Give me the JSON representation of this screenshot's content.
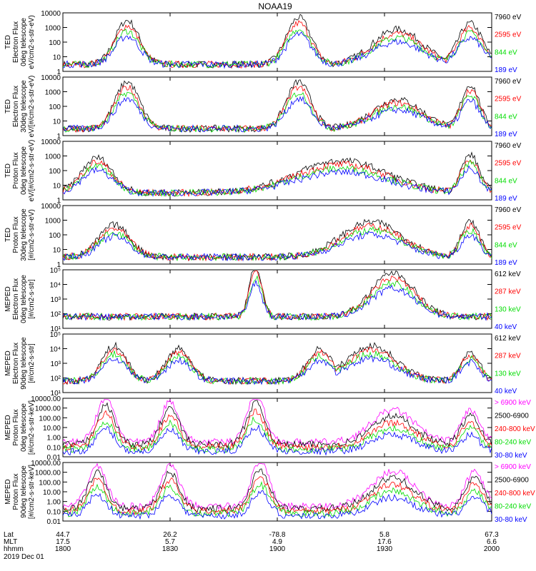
{
  "title": "NOAA19",
  "chart_data": {
    "type": "line",
    "title": "NOAA19",
    "time_axis": {
      "rows": [
        {
          "label": "Lat",
          "values": [
            "44.7",
            "26.2",
            "-78.8",
            "5.8",
            "67.3"
          ]
        },
        {
          "label": "MLT",
          "values": [
            "17.5",
            "5.7",
            "4.9",
            "17.6",
            "6.6"
          ]
        },
        {
          "label": "hhmm",
          "values": [
            "1800",
            "1830",
            "1900",
            "1930",
            "2000"
          ]
        }
      ],
      "date": "2019 Dec 01"
    },
    "panels": [
      {
        "ylabel": [
          "TED",
          "Electron Flux",
          "0deg telescope",
          "eV/cm2-s-str-eV)"
        ],
        "ylim": [
          1,
          10000
        ],
        "scale": "log",
        "yticks": [
          "1",
          "10",
          "100",
          "1000",
          "10000"
        ],
        "legend": [
          {
            "name": "7960 eV",
            "color": "#000000"
          },
          {
            "name": "2595 eV",
            "color": "#ff0000"
          },
          {
            "name": "844 eV",
            "color": "#00dd00"
          },
          {
            "name": "189 eV",
            "color": "#0000ff"
          }
        ]
      },
      {
        "ylabel": [
          "TED",
          "Electron Flux",
          "30deg telescope",
          "eV/[#/cm2-s-str-eV)"
        ],
        "ylim": [
          1,
          10000
        ],
        "scale": "log",
        "yticks": [
          "1",
          "10",
          "100",
          "1000",
          "10000"
        ],
        "legend": [
          {
            "name": "7960 eV",
            "color": "#000000"
          },
          {
            "name": "2595 eV",
            "color": "#ff0000"
          },
          {
            "name": "844 eV",
            "color": "#00dd00"
          },
          {
            "name": "189 eV",
            "color": "#0000ff"
          }
        ]
      },
      {
        "ylabel": [
          "TED",
          "Proton Flux",
          "0deg telescope",
          "eV/[#/cm2-s-str-eV)"
        ],
        "ylim": [
          1,
          10000
        ],
        "scale": "log",
        "yticks": [
          "1",
          "10",
          "100",
          "1000",
          "10000"
        ],
        "legend": [
          {
            "name": "7960 eV",
            "color": "#000000"
          },
          {
            "name": "2595 eV",
            "color": "#ff0000"
          },
          {
            "name": "844 eV",
            "color": "#00dd00"
          },
          {
            "name": "189 eV",
            "color": "#0000ff"
          }
        ]
      },
      {
        "ylabel": [
          "TED",
          "Proton Flux",
          "30deg telescope",
          "[#/cm2-s-str-eV)"
        ],
        "ylim": [
          1,
          10000
        ],
        "scale": "log",
        "yticks": [
          "1",
          "10",
          "100",
          "1000",
          "10000"
        ],
        "legend": [
          {
            "name": "7960 eV",
            "color": "#000000"
          },
          {
            "name": "2595 eV",
            "color": "#ff0000"
          },
          {
            "name": "844 eV",
            "color": "#00dd00"
          },
          {
            "name": "189 eV",
            "color": "#0000ff"
          }
        ]
      },
      {
        "ylabel": [
          "MEPED",
          "Electron Flux",
          "0deg telescope",
          "[#/cm2-s-str]"
        ],
        "ylim": [
          10,
          100000
        ],
        "scale": "log",
        "yticks": [
          "10¹",
          "10²",
          "10³",
          "10⁴",
          "10⁵"
        ],
        "legend": [
          {
            "name": "612 keV",
            "color": "#000000"
          },
          {
            "name": "287 keV",
            "color": "#ff0000"
          },
          {
            "name": "130 keV",
            "color": "#00dd00"
          },
          {
            "name": "40 keV",
            "color": "#0000ff"
          }
        ]
      },
      {
        "ylabel": [
          "MEPED",
          "Electron Flux",
          "90deg telescope",
          "[#/cm2-s-str]"
        ],
        "ylim": [
          10,
          100000
        ],
        "scale": "log",
        "yticks": [
          "10¹",
          "10²",
          "10³",
          "10⁴",
          "10⁵"
        ],
        "legend": [
          {
            "name": "612 keV",
            "color": "#000000"
          },
          {
            "name": "287 keV",
            "color": "#ff0000"
          },
          {
            "name": "130 keV",
            "color": "#00dd00"
          },
          {
            "name": "40 keV",
            "color": "#0000ff"
          }
        ]
      },
      {
        "ylabel": [
          "MEPED",
          "Proton Flux",
          "0deg telescope",
          "[#/cm2-s-str-keV]"
        ],
        "ylim": [
          0.01,
          10000
        ],
        "scale": "log",
        "yticks": [
          "0.01",
          "0.10",
          "1.00",
          "10.00",
          "100.00",
          "1000.00",
          "10000.00"
        ],
        "legend": [
          {
            "name": "> 6900 keV",
            "color": "#ff00ff"
          },
          {
            "name": "2500-6900",
            "color": "#000000"
          },
          {
            "name": "240-800 keV",
            "color": "#ff0000"
          },
          {
            "name": "80-240 keV",
            "color": "#00dd00"
          },
          {
            "name": "30-80 keV",
            "color": "#0000ff"
          }
        ]
      },
      {
        "ylabel": [
          "MEPED",
          "Proton Flux",
          "90deg telescope",
          "[#/cm2-s-str-keV]"
        ],
        "ylim": [
          0.01,
          10000
        ],
        "scale": "log",
        "yticks": [
          "0.01",
          "0.10",
          "1.00",
          "10.00",
          "100.00",
          "1000.00",
          "10000.00"
        ],
        "legend": [
          {
            "name": "> 6900 keV",
            "color": "#ff00ff"
          },
          {
            "name": "2500-6900",
            "color": "#000000"
          },
          {
            "name": "240-800 keV",
            "color": "#ff0000"
          },
          {
            "name": "80-240 keV",
            "color": "#00dd00"
          },
          {
            "name": "30-80 keV",
            "color": "#0000ff"
          }
        ]
      }
    ]
  }
}
